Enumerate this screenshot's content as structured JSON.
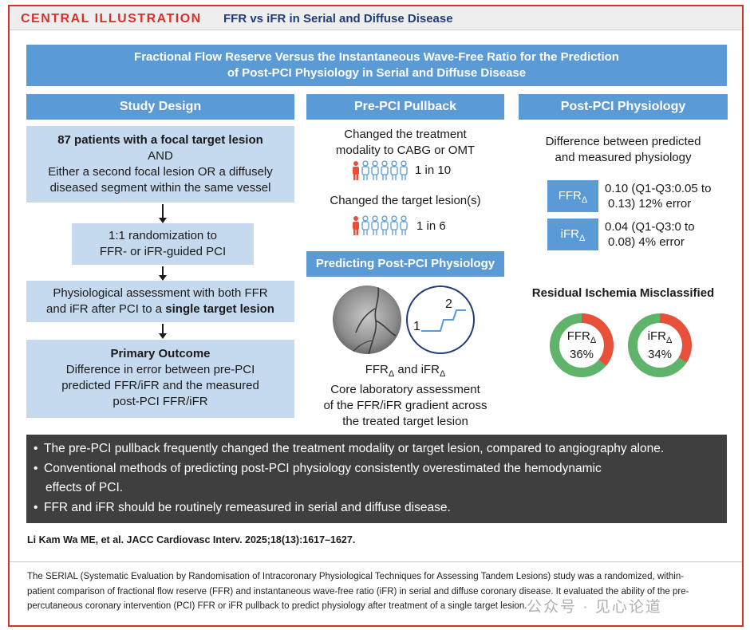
{
  "header": {
    "label": "CENTRAL ILLUSTRATION",
    "title": "FFR vs iFR in Serial and Diffuse Disease"
  },
  "banner": {
    "line1": "Fractional Flow Reserve Versus the Instantaneous Wave-Free Ratio for the Prediction",
    "line2": "of Post-PCI  Physiology in Serial and Diffuse Disease"
  },
  "study_design": {
    "title": "Study Design",
    "box1_bold": "87 patients with a focal target lesion",
    "box1_and": "AND",
    "box1_line1": "Either a second focal lesion OR a diffusely",
    "box1_line2": "diseased segment within the same vessel",
    "box2_line1": "1:1 randomization to",
    "box2_line2": "FFR- or iFR-guided PCI",
    "box3_line1": "Physiological assessment with both FFR",
    "box3_pre": "and iFR after PCI to a ",
    "box3_bold": "single target lesion",
    "box4_title": "Primary Outcome",
    "box4_line1": "Difference in error between pre-PCI",
    "box4_line2": "predicted FFR/iFR and the measured",
    "box4_line3": "post-PCI FFR/iFR"
  },
  "pullback": {
    "title": "Pre-PCI Pullback",
    "item1_line1": "Changed the treatment",
    "item1_line2": "modality to CABG or OMT",
    "item1_ratio": "1 in 10",
    "item2_line1": "Changed the target lesion(s)",
    "item2_ratio": "1 in 6",
    "predict_title": "Predicting Post-PCI Physiology",
    "graph_label_1": "1",
    "graph_label_2": "2",
    "caption_ffr": "FFR",
    "caption_and": " and iFR",
    "caption_delta": "Δ",
    "caption_line2": "Core laboratory assessment",
    "caption_line3": "of the FFR/iFR gradient across",
    "caption_line4": "the treated target lesion"
  },
  "post_pci": {
    "title": "Post-PCI Physiology",
    "subtitle_line1": "Difference between predicted",
    "subtitle_line2": "and measured physiology",
    "ffr_label": "FFR",
    "ifr_label": "iFR",
    "delta": "Δ",
    "ffr_line1": "0.10 (Q1-Q3:0.05 to",
    "ffr_line2": "0.13) 12% error",
    "ifr_line1": "0.04 (Q1-Q3:0 to",
    "ifr_line2": "0.08) 4% error",
    "misclass_title": "Residual Ischemia Misclassified",
    "donut_ffr_pct": "36%",
    "donut_ifr_pct": "34%"
  },
  "chart_data": {
    "type": "pie",
    "title": "Residual Ischemia Misclassified",
    "series": [
      {
        "name": "FFRΔ",
        "misclassified_pct": 36,
        "correct_pct": 64
      },
      {
        "name": "iFRΔ",
        "misclassified_pct": 34,
        "correct_pct": 66
      }
    ],
    "colors": {
      "misclassified": "#e8503a",
      "correct": "#5fb36b"
    }
  },
  "bullets": [
    "The pre-PCI pullback frequently changed the treatment modality or target lesion, compared to angiography alone.",
    "Conventional methods of predicting post-PCI physiology consistently overestimated the hemodynamic",
    "effects of PCI.",
    "FFR and iFR should be routinely remeasured in serial and diffuse disease."
  ],
  "citation": "Li Kam Wa ME, et al. JACC Cardiovasc Interv. 2025;18(13):1617–1627.",
  "footer": {
    "line1": "The SERIAL (Systematic Evaluation by Randomisation of Intracoronary Physiological Techniques for Assessing Tandem Lesions) study was a randomized, within-",
    "line2": "patient comparison of fractional flow reserve (FFR) and instantaneous wave-free ratio (iFR) in serial and diffuse coronary disease. It evaluated the ability of the pre-",
    "line3": "percutaneous coronary intervention (PCI) FFR or iFR pullback to predict physiology after treatment of a single target lesion."
  },
  "watermark": "公众号 · 见心论道",
  "colors": {
    "accent_red": "#d9302c",
    "header_blue": "#5b9bd5",
    "box_light_blue": "#c5d9ef",
    "navy": "#1f3d7a",
    "dark_panel": "#3f3f3f"
  }
}
